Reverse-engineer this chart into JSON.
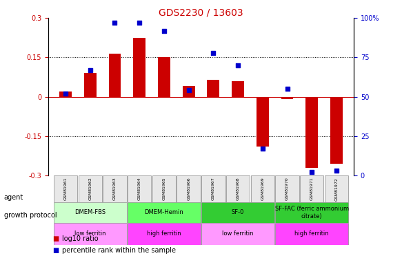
{
  "title": "GDS2230 / 13603",
  "samples": [
    "GSM81961",
    "GSM81962",
    "GSM81963",
    "GSM81964",
    "GSM81965",
    "GSM81966",
    "GSM81967",
    "GSM81968",
    "GSM81969",
    "GSM81970",
    "GSM81971",
    "GSM81972"
  ],
  "log10_ratio": [
    0.02,
    0.09,
    0.165,
    0.225,
    0.15,
    0.04,
    0.065,
    0.06,
    -0.19,
    -0.01,
    -0.27,
    -0.255
  ],
  "percentile_rank": [
    52,
    67,
    97,
    97,
    92,
    54,
    78,
    70,
    17,
    55,
    2,
    3
  ],
  "bar_color": "#cc0000",
  "dot_color": "#0000cc",
  "ylim": [
    -0.3,
    0.3
  ],
  "y2lim": [
    0,
    100
  ],
  "yticks": [
    -0.3,
    -0.15,
    0.0,
    0.15,
    0.3
  ],
  "y2ticks": [
    0,
    25,
    50,
    75,
    100
  ],
  "ytick_labels": [
    "-0.3",
    "-0.15",
    "0",
    "0.15",
    "0.3"
  ],
  "y2tick_labels": [
    "0",
    "25",
    "50",
    "75",
    "100%"
  ],
  "hline_color": "#cc0000",
  "dotted_line_color": "#000000",
  "agent_groups": [
    {
      "label": "DMEM-FBS",
      "start": 0,
      "end": 3,
      "color": "#ccffcc"
    },
    {
      "label": "DMEM-Hemin",
      "start": 3,
      "end": 6,
      "color": "#66ff66"
    },
    {
      "label": "SF-0",
      "start": 6,
      "end": 9,
      "color": "#33cc33"
    },
    {
      "label": "SF-FAC (ferric ammonium\ncitrate)",
      "start": 9,
      "end": 12,
      "color": "#33cc33"
    }
  ],
  "protocol_groups": [
    {
      "label": "low ferritin",
      "start": 0,
      "end": 3,
      "color": "#ff99ff"
    },
    {
      "label": "high ferritin",
      "start": 3,
      "end": 6,
      "color": "#ff44ff"
    },
    {
      "label": "low ferritin",
      "start": 6,
      "end": 9,
      "color": "#ff99ff"
    },
    {
      "label": "high ferritin",
      "start": 9,
      "end": 12,
      "color": "#ff44ff"
    }
  ],
  "legend_items": [
    {
      "label": "log10 ratio",
      "color": "#cc0000",
      "marker": "s"
    },
    {
      "label": "percentile rank within the sample",
      "color": "#0000cc",
      "marker": "s"
    }
  ],
  "title_color": "#cc0000",
  "left_label_color": "#cc0000",
  "right_label_color": "#0000cc"
}
